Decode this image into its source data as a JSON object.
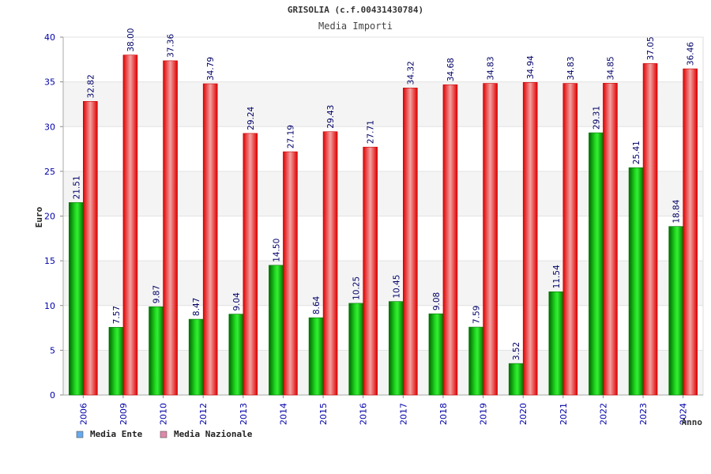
{
  "chart_data": {
    "type": "bar",
    "title": "GRISOLIA (c.f.00431430784)",
    "subtitle": "Media Importi",
    "xlabel": "Anno",
    "ylabel": "Euro",
    "ylim": [
      0,
      40
    ],
    "yticks": [
      0,
      5,
      10,
      15,
      20,
      25,
      30,
      35,
      40
    ],
    "grid": true,
    "legend_position": "bottom-left",
    "categories": [
      "2006",
      "2009",
      "2010",
      "2012",
      "2013",
      "2014",
      "2015",
      "2016",
      "2017",
      "2018",
      "2019",
      "2020",
      "2021",
      "2022",
      "2023",
      "2024"
    ],
    "series": [
      {
        "name": "Media Ente",
        "color": "#00aa00",
        "legend_color": "#66aaee",
        "values": [
          21.51,
          7.57,
          9.87,
          8.47,
          9.04,
          14.5,
          8.64,
          10.25,
          10.45,
          9.08,
          7.59,
          3.52,
          11.54,
          29.31,
          25.41,
          18.84
        ],
        "labels": [
          "21.51",
          "7.57",
          "9.87",
          "8.47",
          "9.04",
          "14.50",
          "8.64",
          "10.25",
          "10.45",
          "9.08",
          "7.59",
          "3.52",
          "11.54",
          "29.31",
          "25.41",
          "18.84"
        ]
      },
      {
        "name": "Media Nazionale",
        "color": "#ee0000",
        "legend_color": "#dd88aa",
        "values": [
          32.82,
          38.0,
          37.36,
          34.79,
          29.24,
          27.19,
          29.43,
          27.71,
          34.32,
          34.68,
          34.83,
          34.94,
          34.83,
          34.85,
          37.05,
          36.46
        ],
        "labels": [
          "32.82",
          "38.00",
          "37.36",
          "34.79",
          "29.24",
          "27.19",
          "29.43",
          "27.71",
          "34.32",
          "34.68",
          "34.83",
          "34.94",
          "34.83",
          "34.85",
          "37.05",
          "36.46"
        ]
      }
    ]
  }
}
